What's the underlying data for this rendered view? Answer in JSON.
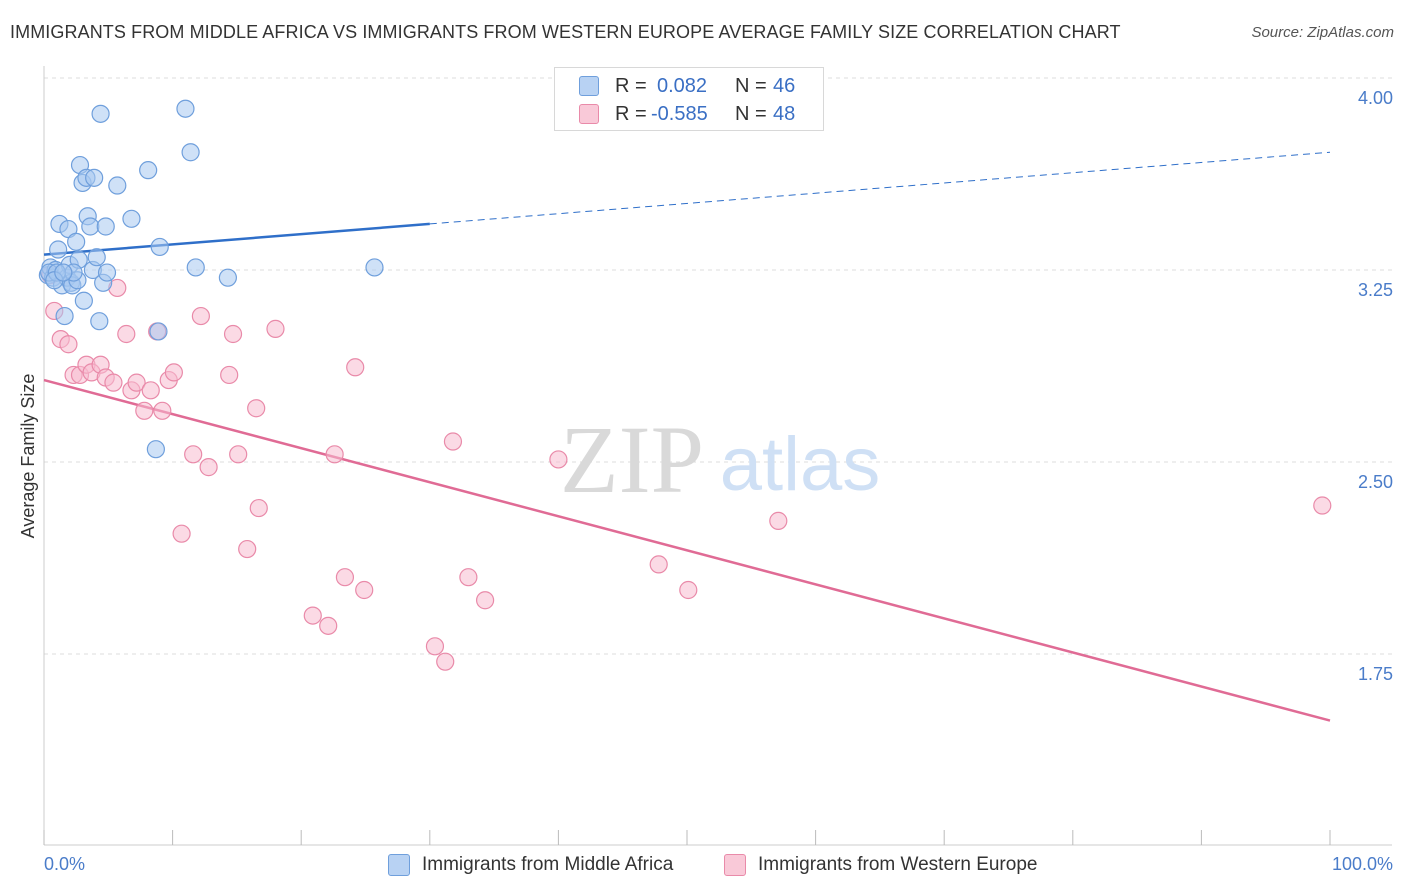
{
  "title": "IMMIGRANTS FROM MIDDLE AFRICA VS IMMIGRANTS FROM WESTERN EUROPE AVERAGE FAMILY SIZE CORRELATION CHART",
  "source": "Source: ZipAtlas.com",
  "watermark": {
    "zip": "ZIP",
    "atlas": "atlas"
  },
  "legend": {
    "rows": [
      {
        "r_label": "R =",
        "r_value": "0.082",
        "n_label": "N =",
        "n_value": "46"
      },
      {
        "r_label": "R =",
        "r_value": "-0.585",
        "n_label": "N =",
        "n_value": "48"
      }
    ]
  },
  "bottom_legend": {
    "blue": "Immigrants from Middle Africa",
    "pink": "Immigrants from Western Europe"
  },
  "colors": {
    "blue_fill": "#a8c8f0",
    "blue_stroke": "#6f9fdc",
    "blue_line": "#2f6fc9",
    "pink_fill": "#f7bccf",
    "pink_stroke": "#e98aa9",
    "pink_line": "#e06b95",
    "grid": "#dddddd",
    "tick_text": "#4a7cc9"
  },
  "chart_data": {
    "type": "scatter",
    "title": "IMMIGRANTS FROM MIDDLE AFRICA VS IMMIGRANTS FROM WESTERN EUROPE AVERAGE FAMILY SIZE CORRELATION CHART",
    "ylabel": "Average Family Size",
    "xlim": [
      0,
      100
    ],
    "ylim": [
      1.0,
      4.1
    ],
    "x_tick_labels": [
      "0.0%",
      "100.0%"
    ],
    "y_ticks": [
      1.75,
      2.5,
      3.25,
      4.0
    ],
    "y_tick_labels": [
      "1.75",
      "2.50",
      "3.25",
      "4.00"
    ],
    "grid": true,
    "series": [
      {
        "name": "Immigrants from Middle Africa",
        "color": "#a8c8f0",
        "points": [
          [
            0.3,
            3.23
          ],
          [
            0.5,
            3.26
          ],
          [
            0.7,
            3.22
          ],
          [
            0.9,
            3.25
          ],
          [
            1.1,
            3.33
          ],
          [
            1.2,
            3.43
          ],
          [
            1.4,
            3.19
          ],
          [
            1.6,
            3.07
          ],
          [
            1.8,
            3.22
          ],
          [
            1.9,
            3.41
          ],
          [
            2.0,
            3.27
          ],
          [
            2.1,
            3.2
          ],
          [
            2.2,
            3.19
          ],
          [
            2.5,
            3.36
          ],
          [
            2.6,
            3.21
          ],
          [
            2.7,
            3.29
          ],
          [
            2.8,
            3.66
          ],
          [
            3.0,
            3.59
          ],
          [
            3.1,
            3.13
          ],
          [
            3.3,
            3.61
          ],
          [
            3.4,
            3.46
          ],
          [
            3.6,
            3.42
          ],
          [
            3.8,
            3.25
          ],
          [
            3.9,
            3.61
          ],
          [
            4.1,
            3.3
          ],
          [
            4.3,
            3.05
          ],
          [
            4.4,
            3.86
          ],
          [
            4.6,
            3.2
          ],
          [
            4.8,
            3.42
          ],
          [
            4.9,
            3.24
          ],
          [
            5.7,
            3.58
          ],
          [
            6.8,
            3.45
          ],
          [
            8.1,
            3.64
          ],
          [
            8.7,
            2.55
          ],
          [
            8.9,
            3.01
          ],
          [
            9.0,
            3.34
          ],
          [
            11.0,
            3.88
          ],
          [
            11.4,
            3.71
          ],
          [
            11.8,
            3.26
          ],
          [
            14.3,
            3.22
          ],
          [
            0.4,
            3.24
          ],
          [
            1.0,
            3.24
          ],
          [
            2.3,
            3.24
          ],
          [
            0.8,
            3.21
          ],
          [
            1.5,
            3.24
          ],
          [
            25.7,
            3.26
          ]
        ]
      },
      {
        "name": "Immigrants from Western Europe",
        "color": "#f7bccf",
        "points": [
          [
            0.5,
            3.23
          ],
          [
            0.8,
            3.09
          ],
          [
            1.3,
            2.98
          ],
          [
            1.9,
            2.96
          ],
          [
            2.3,
            2.84
          ],
          [
            2.8,
            2.84
          ],
          [
            3.3,
            2.88
          ],
          [
            3.7,
            2.85
          ],
          [
            4.4,
            2.88
          ],
          [
            4.8,
            2.83
          ],
          [
            5.4,
            2.81
          ],
          [
            5.7,
            3.18
          ],
          [
            6.4,
            3.0
          ],
          [
            6.8,
            2.78
          ],
          [
            7.2,
            2.81
          ],
          [
            7.8,
            2.7
          ],
          [
            8.3,
            2.78
          ],
          [
            8.8,
            3.01
          ],
          [
            9.2,
            2.7
          ],
          [
            9.7,
            2.82
          ],
          [
            10.1,
            2.85
          ],
          [
            10.7,
            2.22
          ],
          [
            11.6,
            2.53
          ],
          [
            12.2,
            3.07
          ],
          [
            12.8,
            2.48
          ],
          [
            14.4,
            2.84
          ],
          [
            14.7,
            3.0
          ],
          [
            15.1,
            2.53
          ],
          [
            15.8,
            2.16
          ],
          [
            16.5,
            2.71
          ],
          [
            16.7,
            2.32
          ],
          [
            18.0,
            3.02
          ],
          [
            20.9,
            1.9
          ],
          [
            22.1,
            1.86
          ],
          [
            22.6,
            2.53
          ],
          [
            23.4,
            2.05
          ],
          [
            24.2,
            2.87
          ],
          [
            24.9,
            2.0
          ],
          [
            30.4,
            1.78
          ],
          [
            31.2,
            1.72
          ],
          [
            31.8,
            2.58
          ],
          [
            33.0,
            2.05
          ],
          [
            34.3,
            1.96
          ],
          [
            40.0,
            2.51
          ],
          [
            47.8,
            2.1
          ],
          [
            50.1,
            2.0
          ],
          [
            57.1,
            2.27
          ],
          [
            99.4,
            2.33
          ]
        ]
      }
    ],
    "trend_lines": [
      {
        "series": "Immigrants from Middle Africa",
        "solid": [
          [
            0,
            3.31
          ],
          [
            30,
            3.43
          ]
        ],
        "dashed": [
          [
            30,
            3.43
          ],
          [
            100,
            3.71
          ]
        ]
      },
      {
        "series": "Immigrants from Western Europe",
        "solid": [
          [
            0,
            2.82
          ],
          [
            100,
            1.49
          ]
        ]
      }
    ]
  }
}
